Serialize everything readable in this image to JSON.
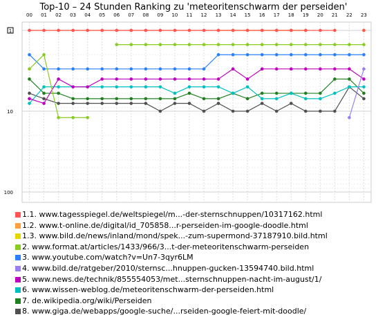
{
  "chart_data": {
    "type": "line",
    "title": "Top-10 – 24 Stunden Ranking zu 'meteoritenschwarm der perseiden'",
    "x": [
      "00",
      "01",
      "02",
      "03",
      "04",
      "05",
      "06",
      "07",
      "08",
      "09",
      "10",
      "11",
      "12",
      "13",
      "14",
      "15",
      "16",
      "17",
      "18",
      "19",
      "20",
      "21",
      "22",
      "23"
    ],
    "y_ticks": [
      "1",
      "10",
      "100"
    ],
    "y_scale": "log",
    "ylim": [
      1,
      100
    ],
    "y_inverted": true,
    "grid": true,
    "series": [
      {
        "name": "1.1. www.tagesspiegel.de/weltspiegel/m...-der-sternschnuppen/10317162.html",
        "color": "#ff5555",
        "values": [
          1,
          1,
          1,
          1,
          1,
          1,
          1,
          1,
          1,
          1,
          1,
          1,
          1,
          1,
          1,
          1,
          1,
          1,
          1,
          1,
          1,
          1,
          null,
          1
        ]
      },
      {
        "name": "1.2. www.t-online.de/digital/id_705858...r-perseiden-im-google-doodle.html",
        "color": "#ffa040",
        "values": [
          1,
          1,
          1,
          1,
          1,
          1,
          1,
          1,
          1,
          1,
          1,
          1,
          1,
          1,
          1,
          1,
          1,
          1,
          1,
          1,
          null,
          null,
          null,
          null
        ]
      },
      {
        "name": "1.3. www.bild.de/news/inland/mond/spek...-zum-supermond-37187910.bild.html",
        "color": "#e6d600",
        "values": [
          null,
          null,
          null,
          null,
          null,
          null,
          null,
          null,
          null,
          null,
          null,
          null,
          null,
          1,
          1,
          1,
          1,
          1,
          1,
          1,
          null,
          1,
          null,
          1
        ]
      },
      {
        "name": "2. www.format.at/articles/1433/966/3...t-der-meteoritenschwarm-perseiden",
        "color": "#88cc22",
        "values": [
          3,
          2,
          12,
          12,
          12,
          null,
          1.5,
          1.5,
          1.5,
          1.5,
          1.5,
          1.5,
          1.5,
          1.5,
          1.5,
          1.5,
          1.5,
          1.5,
          1.5,
          1.5,
          1.5,
          1.5,
          1.5,
          1.5
        ]
      },
      {
        "name": "3. www.youtube.com/watch?v=Un7-3qyr6LM",
        "color": "#2a80ff",
        "values": [
          2,
          3,
          3,
          3,
          3,
          3,
          3,
          3,
          3,
          3,
          3,
          3,
          3,
          2,
          2,
          2,
          2,
          2,
          2,
          2,
          2,
          2,
          2,
          2
        ]
      },
      {
        "name": "4. www.bild.de/ratgeber/2010/sternsc...hnuppen-gucken-13594740.bild.html",
        "color": "#9a7ef0",
        "values": [
          null,
          null,
          null,
          null,
          null,
          null,
          null,
          null,
          null,
          null,
          null,
          null,
          null,
          null,
          null,
          null,
          null,
          null,
          null,
          null,
          null,
          null,
          12,
          3
        ]
      },
      {
        "name": "5. www.news.de/technik/855554053/met...sternschnuppen-nacht-im-august/1/",
        "color": "#c000c0",
        "values": [
          7,
          8,
          4,
          5,
          5,
          4,
          4,
          4,
          4,
          4,
          4,
          4,
          4,
          4,
          3,
          4,
          3,
          3,
          3,
          3,
          3,
          3,
          3,
          4
        ]
      },
      {
        "name": "6. www.wissen-weblog.de/meteoritenschwarm-der-perseiden.html",
        "color": "#00c0c0",
        "values": [
          8,
          5,
          5,
          5,
          5,
          5,
          5,
          5,
          5,
          5,
          6,
          5,
          5,
          5,
          6,
          5,
          7,
          7,
          6,
          7,
          7,
          6,
          5,
          5
        ]
      },
      {
        "name": "7. de.wikipedia.org/wiki/Perseiden",
        "color": "#208020",
        "values": [
          4,
          6,
          6,
          7,
          7,
          7,
          7,
          7,
          7,
          7,
          7,
          6,
          7,
          7,
          6,
          7,
          6,
          6,
          6,
          6,
          6,
          4,
          4,
          6
        ]
      },
      {
        "name": "8. www.giga.de/webapps/google-suche/...rseiden-google-feiert-mit-doodle/",
        "color": "#505050",
        "values": [
          6,
          7,
          8,
          8,
          8,
          8,
          8,
          8,
          8,
          10,
          8,
          8,
          10,
          8,
          10,
          10,
          8,
          10,
          8,
          10,
          10,
          10,
          5,
          7
        ]
      }
    ]
  }
}
